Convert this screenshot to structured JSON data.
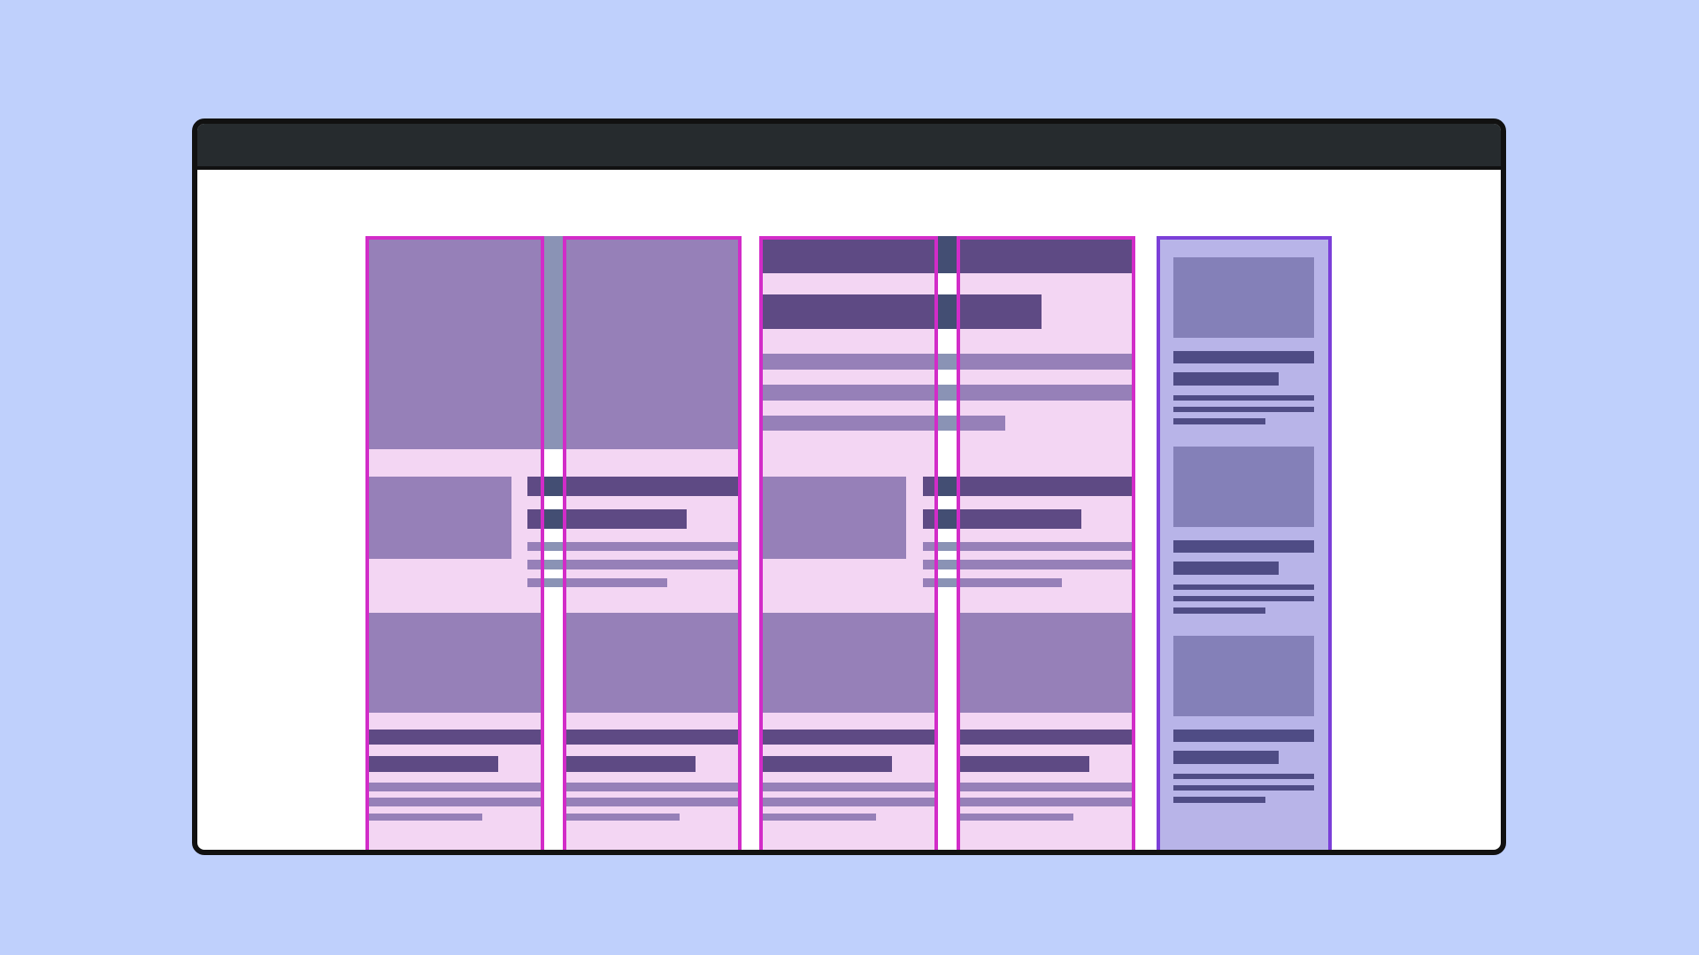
{
  "colors": {
    "background": "#bfd0fc",
    "window_frame": "#111111",
    "titlebar": "#262b2e",
    "content_block": "#8a93b5",
    "content_heading": "#434e73",
    "column_overlay": "rgba(200,60,200,0.21)",
    "column_border": "#d22cc8",
    "sidebar_fill": "#b8b4e8",
    "sidebar_border": "#7b3fd8",
    "sidebar_block": "#8480b8",
    "sidebar_heading": "#4f4c85"
  }
}
